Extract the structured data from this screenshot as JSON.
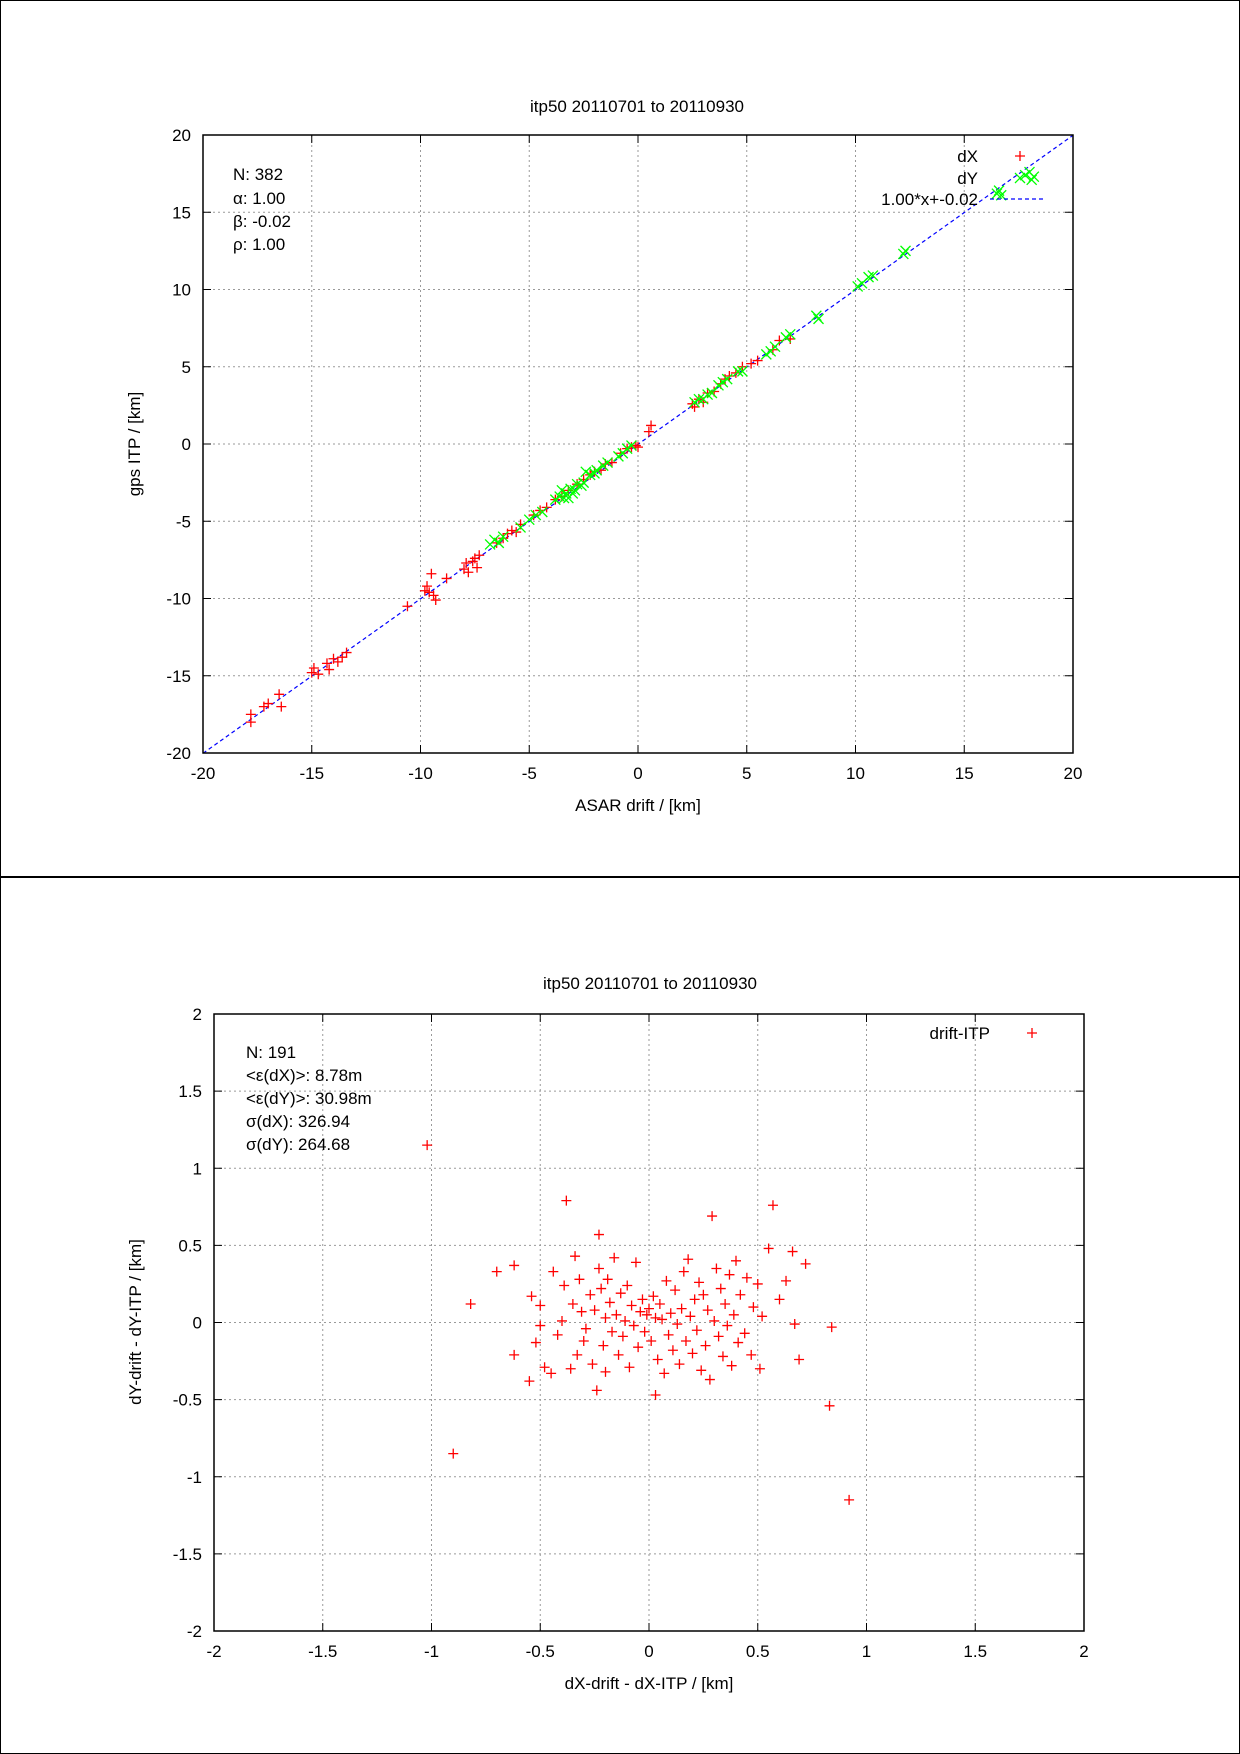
{
  "chart_data": [
    {
      "type": "scatter",
      "title": "itp50 20110701 to 20110930",
      "xlabel": "ASAR drift / [km]",
      "ylabel": "gps ITP / [km]",
      "xlim": [
        -20,
        20
      ],
      "ylim": [
        -20,
        20
      ],
      "xticks": [
        -20,
        -15,
        -10,
        -5,
        0,
        5,
        10,
        15,
        20
      ],
      "yticks": [
        -20,
        -15,
        -10,
        -5,
        0,
        5,
        10,
        15,
        20
      ],
      "grid": true,
      "legend_position": "top-right",
      "stats": [
        "N: 382",
        "α: 1.00",
        "β: -0.02",
        "ρ: 1.00"
      ],
      "series": [
        {
          "name": "dX",
          "marker": "+",
          "color": "#ff0000",
          "points": [
            [
              -17.8,
              -18.0
            ],
            [
              -17.8,
              -17.5
            ],
            [
              -17.2,
              -17.0
            ],
            [
              -17.0,
              -16.8
            ],
            [
              -16.5,
              -16.2
            ],
            [
              -16.4,
              -17.0
            ],
            [
              -15.0,
              -14.8
            ],
            [
              -14.9,
              -14.5
            ],
            [
              -14.7,
              -14.9
            ],
            [
              -14.3,
              -14.2
            ],
            [
              -14.2,
              -14.6
            ],
            [
              -14.0,
              -13.9
            ],
            [
              -13.8,
              -14.1
            ],
            [
              -13.6,
              -13.8
            ],
            [
              -13.4,
              -13.5
            ],
            [
              -10.6,
              -10.5
            ],
            [
              -9.8,
              -9.5
            ],
            [
              -9.7,
              -9.2
            ],
            [
              -9.6,
              -9.6
            ],
            [
              -9.5,
              -8.4
            ],
            [
              -9.4,
              -9.8
            ],
            [
              -9.3,
              -10.1
            ],
            [
              -8.8,
              -8.7
            ],
            [
              -8.0,
              -8.1
            ],
            [
              -7.9,
              -7.7
            ],
            [
              -7.8,
              -8.3
            ],
            [
              -7.6,
              -7.6
            ],
            [
              -7.5,
              -7.4
            ],
            [
              -7.4,
              -8.0
            ],
            [
              -7.3,
              -7.2
            ],
            [
              -6.5,
              -6.4
            ],
            [
              -6.2,
              -6.1
            ],
            [
              -6.0,
              -5.8
            ],
            [
              -5.8,
              -5.6
            ],
            [
              -5.6,
              -5.7
            ],
            [
              -5.4,
              -5.2
            ],
            [
              -4.8,
              -4.6
            ],
            [
              -4.5,
              -4.3
            ],
            [
              -4.2,
              -4.1
            ],
            [
              -3.8,
              -3.6
            ],
            [
              -3.5,
              -3.4
            ],
            [
              -3.2,
              -3.0
            ],
            [
              -2.8,
              -2.6
            ],
            [
              -2.5,
              -2.3
            ],
            [
              -2.2,
              -2.0
            ],
            [
              -2.0,
              -1.8
            ],
            [
              -1.7,
              -1.7
            ],
            [
              -1.5,
              -1.3
            ],
            [
              -1.2,
              -1.2
            ],
            [
              -0.8,
              -0.6
            ],
            [
              -0.5,
              -0.3
            ],
            [
              -0.3,
              -0.2
            ],
            [
              -0.1,
              -0.1
            ],
            [
              0.0,
              -0.2
            ],
            [
              0.5,
              0.8
            ],
            [
              0.6,
              1.2
            ],
            [
              2.5,
              2.6
            ],
            [
              2.6,
              2.4
            ],
            [
              2.8,
              2.9
            ],
            [
              3.0,
              2.7
            ],
            [
              3.2,
              3.3
            ],
            [
              3.5,
              3.4
            ],
            [
              3.8,
              3.9
            ],
            [
              4.0,
              4.2
            ],
            [
              4.2,
              4.4
            ],
            [
              4.5,
              4.6
            ],
            [
              4.8,
              5.0
            ],
            [
              5.2,
              5.2
            ],
            [
              5.5,
              5.4
            ],
            [
              6.2,
              6.1
            ],
            [
              6.5,
              6.7
            ],
            [
              7.0,
              6.8
            ]
          ]
        },
        {
          "name": "dY",
          "marker": "x",
          "color": "#00ff00",
          "points": [
            [
              -6.8,
              -6.5
            ],
            [
              -6.6,
              -6.2
            ],
            [
              -6.4,
              -6.4
            ],
            [
              -6.2,
              -6.0
            ],
            [
              -5.4,
              -5.4
            ],
            [
              -5.0,
              -4.9
            ],
            [
              -4.7,
              -4.6
            ],
            [
              -4.4,
              -4.4
            ],
            [
              -3.8,
              -3.6
            ],
            [
              -3.6,
              -3.4
            ],
            [
              -3.5,
              -3.0
            ],
            [
              -3.4,
              -3.5
            ],
            [
              -3.3,
              -3.2
            ],
            [
              -3.2,
              -3.5
            ],
            [
              -3.1,
              -2.9
            ],
            [
              -3.0,
              -3.2
            ],
            [
              -2.9,
              -3.0
            ],
            [
              -2.8,
              -2.6
            ],
            [
              -2.6,
              -2.7
            ],
            [
              -2.5,
              -2.5
            ],
            [
              -2.4,
              -1.8
            ],
            [
              -2.2,
              -2.0
            ],
            [
              -2.0,
              -1.9
            ],
            [
              -1.9,
              -1.7
            ],
            [
              -1.6,
              -1.4
            ],
            [
              -1.4,
              -1.2
            ],
            [
              -0.9,
              -0.8
            ],
            [
              -0.7,
              -0.6
            ],
            [
              -0.5,
              -0.3
            ],
            [
              -0.3,
              -0.1
            ],
            [
              2.6,
              2.7
            ],
            [
              2.8,
              2.9
            ],
            [
              3.0,
              2.9
            ],
            [
              3.2,
              3.2
            ],
            [
              3.4,
              3.3
            ],
            [
              3.7,
              3.8
            ],
            [
              3.9,
              4.0
            ],
            [
              4.1,
              4.2
            ],
            [
              4.6,
              4.7
            ],
            [
              4.8,
              4.7
            ],
            [
              5.9,
              5.8
            ],
            [
              6.1,
              6.0
            ],
            [
              6.3,
              6.3
            ],
            [
              6.8,
              6.9
            ],
            [
              7.0,
              7.1
            ],
            [
              8.2,
              8.3
            ],
            [
              8.3,
              8.1
            ],
            [
              10.1,
              10.2
            ],
            [
              10.3,
              10.4
            ],
            [
              10.6,
              10.8
            ],
            [
              10.8,
              10.9
            ],
            [
              12.2,
              12.3
            ],
            [
              12.3,
              12.5
            ],
            [
              16.5,
              16.2
            ],
            [
              16.6,
              16.4
            ],
            [
              16.7,
              16.1
            ],
            [
              17.8,
              17.4
            ],
            [
              18.0,
              17.6
            ],
            [
              18.1,
              17.1
            ],
            [
              18.2,
              17.3
            ]
          ]
        }
      ],
      "fit_line": {
        "name": "1.00*x+-0.02",
        "slope": 1.0,
        "intercept": -0.02,
        "color": "#0000ff"
      }
    },
    {
      "type": "scatter",
      "title": "itp50 20110701 to 20110930",
      "xlabel": "dX-drift - dX-ITP / [km]",
      "ylabel": "dY-drift - dY-ITP / [km]",
      "xlim": [
        -2,
        2
      ],
      "ylim": [
        -2,
        2
      ],
      "xticks": [
        -2,
        -1.5,
        -1,
        -0.5,
        0,
        0.5,
        1,
        1.5,
        2
      ],
      "yticks": [
        -2,
        -1.5,
        -1,
        -0.5,
        0,
        0.5,
        1,
        1.5,
        2
      ],
      "grid": true,
      "legend_position": "top-right",
      "stats": [
        "N: 191",
        "<ε(dX)>:  8.78m",
        "<ε(dY)>: 30.98m",
        "σ(dX):  326.94",
        "σ(dY):  264.68"
      ],
      "series": [
        {
          "name": "drift-ITP",
          "marker": "+",
          "color": "#ff0000",
          "points": [
            [
              -1.02,
              1.15
            ],
            [
              -0.9,
              -0.85
            ],
            [
              -0.82,
              0.12
            ],
            [
              -0.7,
              0.33
            ],
            [
              -0.62,
              0.37
            ],
            [
              -0.62,
              -0.21
            ],
            [
              -0.55,
              -0.38
            ],
            [
              -0.54,
              0.17
            ],
            [
              -0.52,
              -0.13
            ],
            [
              -0.5,
              0.11
            ],
            [
              -0.5,
              -0.02
            ],
            [
              -0.48,
              -0.29
            ],
            [
              -0.45,
              -0.33
            ],
            [
              -0.44,
              0.33
            ],
            [
              -0.42,
              -0.08
            ],
            [
              -0.4,
              0.01
            ],
            [
              -0.39,
              0.24
            ],
            [
              -0.38,
              0.79
            ],
            [
              -0.36,
              -0.3
            ],
            [
              -0.35,
              0.12
            ],
            [
              -0.34,
              0.43
            ],
            [
              -0.33,
              -0.21
            ],
            [
              -0.32,
              0.28
            ],
            [
              -0.31,
              0.07
            ],
            [
              -0.3,
              -0.12
            ],
            [
              -0.29,
              -0.04
            ],
            [
              -0.27,
              0.18
            ],
            [
              -0.26,
              -0.27
            ],
            [
              -0.25,
              0.08
            ],
            [
              -0.24,
              -0.44
            ],
            [
              -0.23,
              0.57
            ],
            [
              -0.23,
              0.35
            ],
            [
              -0.22,
              0.22
            ],
            [
              -0.21,
              -0.15
            ],
            [
              -0.2,
              0.03
            ],
            [
              -0.2,
              -0.32
            ],
            [
              -0.19,
              0.28
            ],
            [
              -0.18,
              0.13
            ],
            [
              -0.17,
              -0.06
            ],
            [
              -0.16,
              0.42
            ],
            [
              -0.15,
              0.05
            ],
            [
              -0.14,
              -0.21
            ],
            [
              -0.13,
              0.19
            ],
            [
              -0.12,
              -0.09
            ],
            [
              -0.11,
              0.01
            ],
            [
              -0.1,
              0.24
            ],
            [
              -0.09,
              -0.29
            ],
            [
              -0.08,
              0.11
            ],
            [
              -0.07,
              -0.02
            ],
            [
              -0.06,
              0.39
            ],
            [
              -0.05,
              -0.16
            ],
            [
              -0.04,
              0.07
            ],
            [
              -0.03,
              0.15
            ],
            [
              -0.02,
              -0.06
            ],
            [
              -0.01,
              0.05
            ],
            [
              0.0,
              0.09
            ],
            [
              0.01,
              -0.12
            ],
            [
              0.02,
              0.17
            ],
            [
              0.03,
              -0.47
            ],
            [
              0.03,
              0.03
            ],
            [
              0.04,
              -0.24
            ],
            [
              0.05,
              0.12
            ],
            [
              0.06,
              0.02
            ],
            [
              0.07,
              -0.33
            ],
            [
              0.08,
              0.27
            ],
            [
              0.09,
              -0.08
            ],
            [
              0.1,
              0.06
            ],
            [
              0.11,
              -0.18
            ],
            [
              0.12,
              0.21
            ],
            [
              0.13,
              -0.01
            ],
            [
              0.14,
              -0.27
            ],
            [
              0.15,
              0.09
            ],
            [
              0.16,
              0.33
            ],
            [
              0.17,
              -0.12
            ],
            [
              0.18,
              0.41
            ],
            [
              0.19,
              0.04
            ],
            [
              0.2,
              -0.2
            ],
            [
              0.21,
              0.15
            ],
            [
              0.22,
              -0.05
            ],
            [
              0.23,
              0.26
            ],
            [
              0.24,
              -0.31
            ],
            [
              0.25,
              0.18
            ],
            [
              0.26,
              -0.15
            ],
            [
              0.27,
              0.08
            ],
            [
              0.28,
              -0.37
            ],
            [
              0.29,
              0.69
            ],
            [
              0.3,
              0.01
            ],
            [
              0.31,
              0.35
            ],
            [
              0.32,
              -0.09
            ],
            [
              0.33,
              0.22
            ],
            [
              0.34,
              -0.22
            ],
            [
              0.35,
              0.12
            ],
            [
              0.36,
              -0.02
            ],
            [
              0.37,
              0.31
            ],
            [
              0.38,
              -0.28
            ],
            [
              0.39,
              0.05
            ],
            [
              0.4,
              0.4
            ],
            [
              0.41,
              -0.13
            ],
            [
              0.42,
              0.18
            ],
            [
              0.44,
              -0.07
            ],
            [
              0.45,
              0.29
            ],
            [
              0.47,
              -0.21
            ],
            [
              0.48,
              0.1
            ],
            [
              0.5,
              0.25
            ],
            [
              0.51,
              -0.3
            ],
            [
              0.52,
              0.04
            ],
            [
              0.55,
              0.48
            ],
            [
              0.57,
              0.76
            ],
            [
              0.6,
              0.15
            ],
            [
              0.63,
              0.27
            ],
            [
              0.66,
              0.46
            ],
            [
              0.67,
              -0.01
            ],
            [
              0.69,
              -0.24
            ],
            [
              0.72,
              0.38
            ],
            [
              0.83,
              -0.54
            ],
            [
              0.84,
              -0.03
            ],
            [
              0.92,
              -1.15
            ]
          ]
        }
      ]
    }
  ]
}
